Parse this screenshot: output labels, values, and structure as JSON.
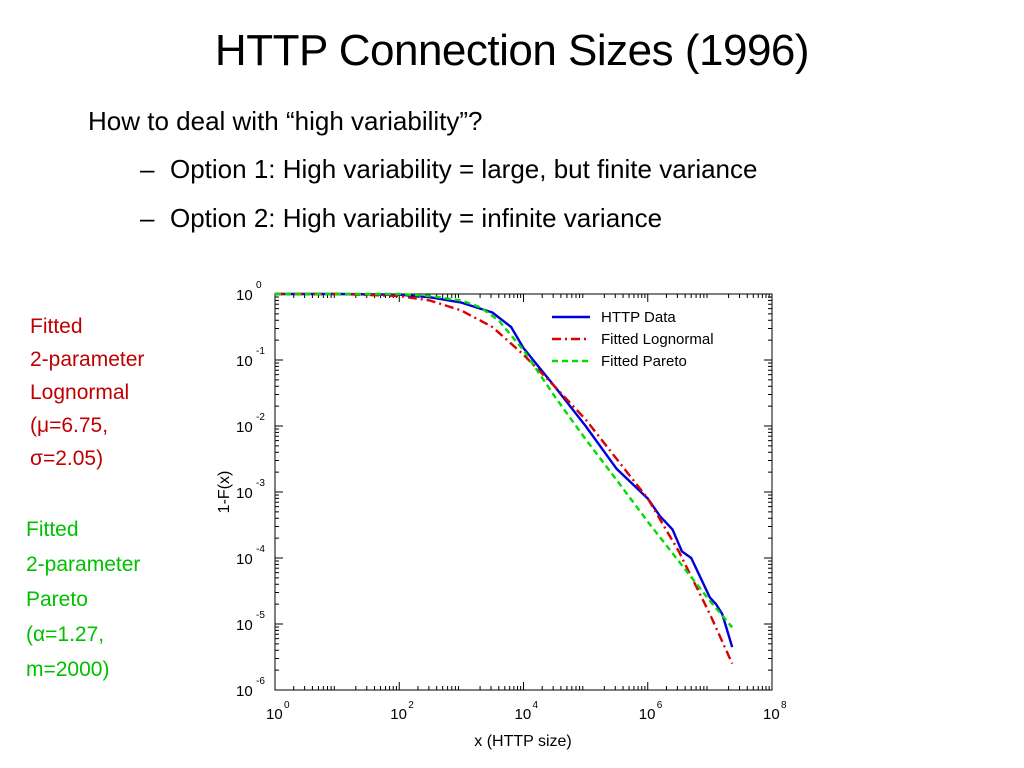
{
  "slide": {
    "title": "HTTP Connection Sizes (1996)",
    "bullet": "How to deal with “high variability”?",
    "sub_bullets": [
      {
        "dash": "–",
        "text": "Option 1: High variability = large, but finite variance"
      },
      {
        "dash": "–",
        "text": "Option 2: High variability = infinite variance"
      }
    ]
  },
  "notes": {
    "lognormal": {
      "lines": [
        "Fitted",
        "2-parameter",
        "Lognormal",
        "(μ=6.75,",
        "σ=2.05)"
      ],
      "color": "#c00000"
    },
    "pareto": {
      "lines": [
        "Fitted",
        "2-parameter",
        "Pareto",
        "(α=1.27,",
        "m=2000)"
      ],
      "color": "#00c000"
    }
  },
  "chart_data": {
    "type": "line",
    "xlabel": "x (HTTP size)",
    "ylabel": "1-F(x)",
    "x_scale": "log",
    "y_scale": "log",
    "xlim_exponent": [
      0,
      8
    ],
    "ylim_exponent": [
      -6,
      0
    ],
    "tick_base": "10",
    "x_tick_exponents": [
      "0",
      "2",
      "4",
      "6",
      "8"
    ],
    "y_tick_exponents": [
      "0",
      "-1",
      "-2",
      "-3",
      "-4",
      "-5",
      "-6"
    ],
    "grid": false,
    "legend_position": "top-right",
    "series": [
      {
        "name": "HTTP Data",
        "color": "#0000dd",
        "style": "solid",
        "log10_x": [
          0,
          1,
          2,
          2.5,
          3,
          3.5,
          3.8,
          4,
          4.5,
          5,
          5.5,
          6,
          6.2,
          6.4,
          6.55,
          6.7,
          6.85,
          7,
          7.1,
          7.2,
          7.36
        ],
        "log10_y": [
          0,
          0,
          -0.01,
          -0.05,
          -0.13,
          -0.28,
          -0.5,
          -0.82,
          -1.4,
          -2.0,
          -2.65,
          -3.1,
          -3.37,
          -3.57,
          -3.9,
          -4.0,
          -4.3,
          -4.6,
          -4.7,
          -4.85,
          -5.35
        ]
      },
      {
        "name": "Fitted Lognormal",
        "color": "#dd0000",
        "style": "dashdot",
        "log10_x": [
          0,
          1,
          2,
          2.5,
          3,
          3.5,
          4,
          4.5,
          5,
          5.5,
          6,
          6.5,
          7,
          7.36
        ],
        "log10_y": [
          0,
          0,
          -0.03,
          -0.1,
          -0.25,
          -0.5,
          -0.92,
          -1.4,
          -1.9,
          -2.5,
          -3.1,
          -3.9,
          -4.85,
          -5.6
        ]
      },
      {
        "name": "Fitted Pareto",
        "color": "#00dd00",
        "style": "dashed",
        "log10_x": [
          0,
          1,
          2,
          2.5,
          3,
          3.3,
          3.6,
          4,
          4.5,
          5,
          5.5,
          6,
          6.5,
          7,
          7.36
        ],
        "log10_y": [
          0,
          0,
          0,
          -0.03,
          -0.1,
          -0.2,
          -0.4,
          -0.85,
          -1.55,
          -2.2,
          -2.82,
          -3.45,
          -4.05,
          -4.65,
          -5.05
        ]
      }
    ]
  }
}
